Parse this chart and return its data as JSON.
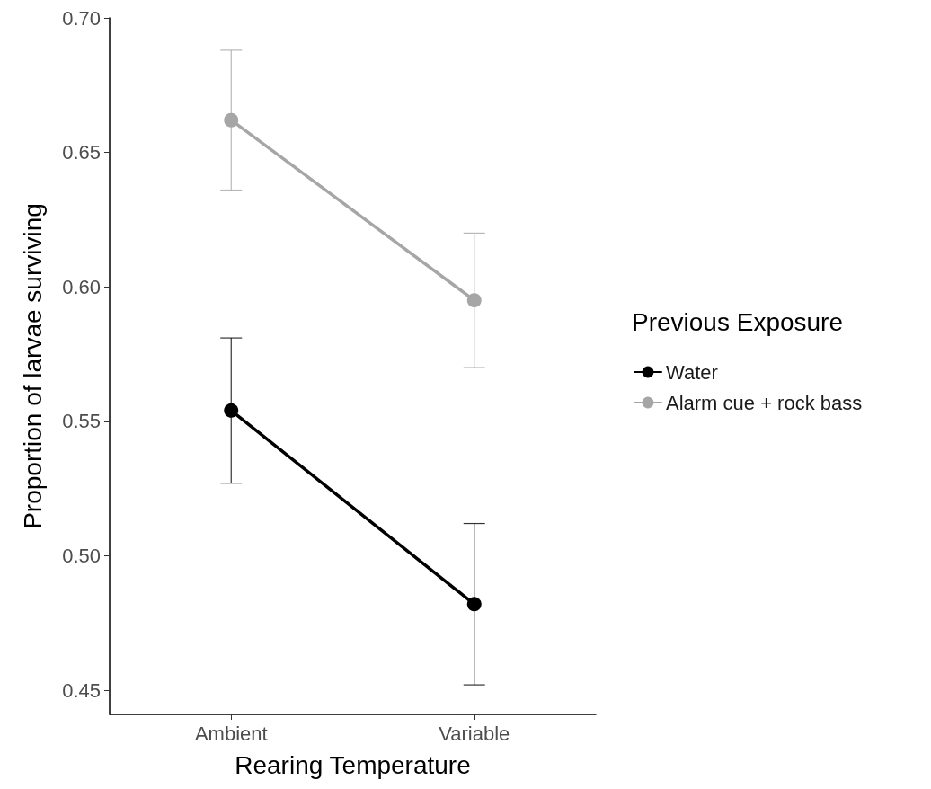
{
  "chart_data": {
    "type": "line",
    "xlabel": "Rearing Temperature",
    "ylabel": "Proportion of larvae surviving",
    "legend_title": "Previous Exposure",
    "categories": [
      "Ambient",
      "Variable"
    ],
    "series": [
      {
        "name": "Water",
        "color": "#000000",
        "values": [
          0.554,
          0.482
        ],
        "errors": [
          0.027,
          0.03
        ]
      },
      {
        "name": "Alarm cue + rock bass",
        "color": "#a6a6a6",
        "values": [
          0.662,
          0.595
        ],
        "errors": [
          0.026,
          0.025
        ]
      }
    ],
    "ylim": [
      0.441,
      0.7
    ],
    "yticks": [
      0.45,
      {
        "value": 0.5,
        "label": "0.50"
      },
      0.55,
      {
        "value": 0.6,
        "label": "0.60"
      },
      0.65,
      {
        "value": 0.7,
        "label": "0.70"
      }
    ],
    "grid": false,
    "legend": "right",
    "marker": "circle",
    "line_style": "solid"
  }
}
